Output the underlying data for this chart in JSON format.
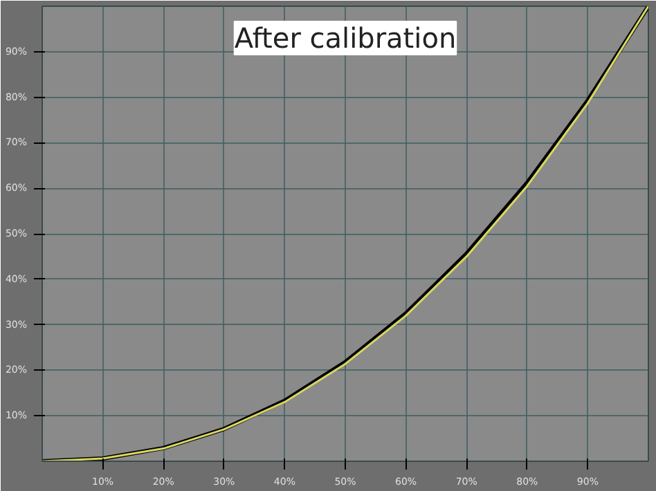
{
  "chart_data": {
    "type": "line",
    "title": "After calibration",
    "x": [
      0,
      10,
      20,
      30,
      40,
      50,
      60,
      70,
      80,
      90,
      100
    ],
    "series": [
      {
        "color": "#000000",
        "values": [
          0,
          0.6,
          2.9,
          7.1,
          13.3,
          21.8,
          32.5,
          45.6,
          61.2,
          79.3,
          100
        ]
      },
      {
        "color": "#d8d860",
        "values": [
          0,
          0.6,
          2.8,
          7.0,
          13.0,
          21.4,
          32.0,
          45.0,
          60.5,
          78.7,
          100
        ]
      }
    ],
    "xlim": [
      0,
      100
    ],
    "ylim": [
      0,
      100
    ],
    "xticks": [
      {
        "value": 10,
        "label": "10%"
      },
      {
        "value": 20,
        "label": "20%"
      },
      {
        "value": 30,
        "label": "30%"
      },
      {
        "value": 40,
        "label": "40%"
      },
      {
        "value": 50,
        "label": "50%"
      },
      {
        "value": 60,
        "label": "60%"
      },
      {
        "value": 70,
        "label": "70%"
      },
      {
        "value": 80,
        "label": "80%"
      },
      {
        "value": 90,
        "label": "90%"
      }
    ],
    "yticks": [
      {
        "value": 10,
        "label": "10%"
      },
      {
        "value": 20,
        "label": "20%"
      },
      {
        "value": 30,
        "label": "30%"
      },
      {
        "value": 40,
        "label": "40%"
      },
      {
        "value": 50,
        "label": "50%"
      },
      {
        "value": 60,
        "label": "60%"
      },
      {
        "value": 70,
        "label": "70%"
      },
      {
        "value": 80,
        "label": "80%"
      },
      {
        "value": 90,
        "label": "90%"
      }
    ],
    "grid": true,
    "marker": "none",
    "line_style": "solid"
  }
}
